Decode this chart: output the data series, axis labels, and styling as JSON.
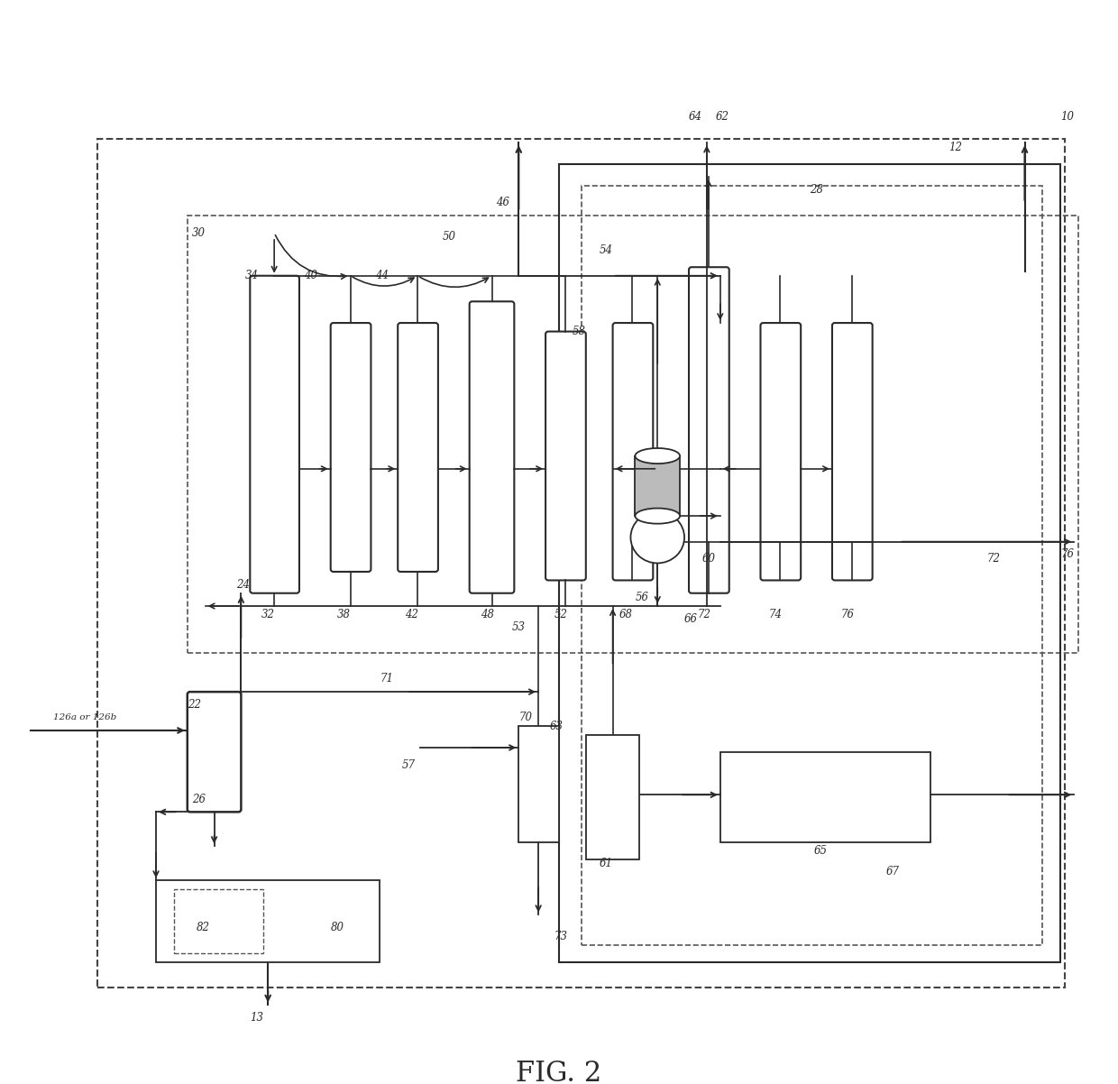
{
  "figure_label": "FIG. 2",
  "bg": "#ffffff",
  "lc": "#2a2a2a",
  "dc": "#555555"
}
